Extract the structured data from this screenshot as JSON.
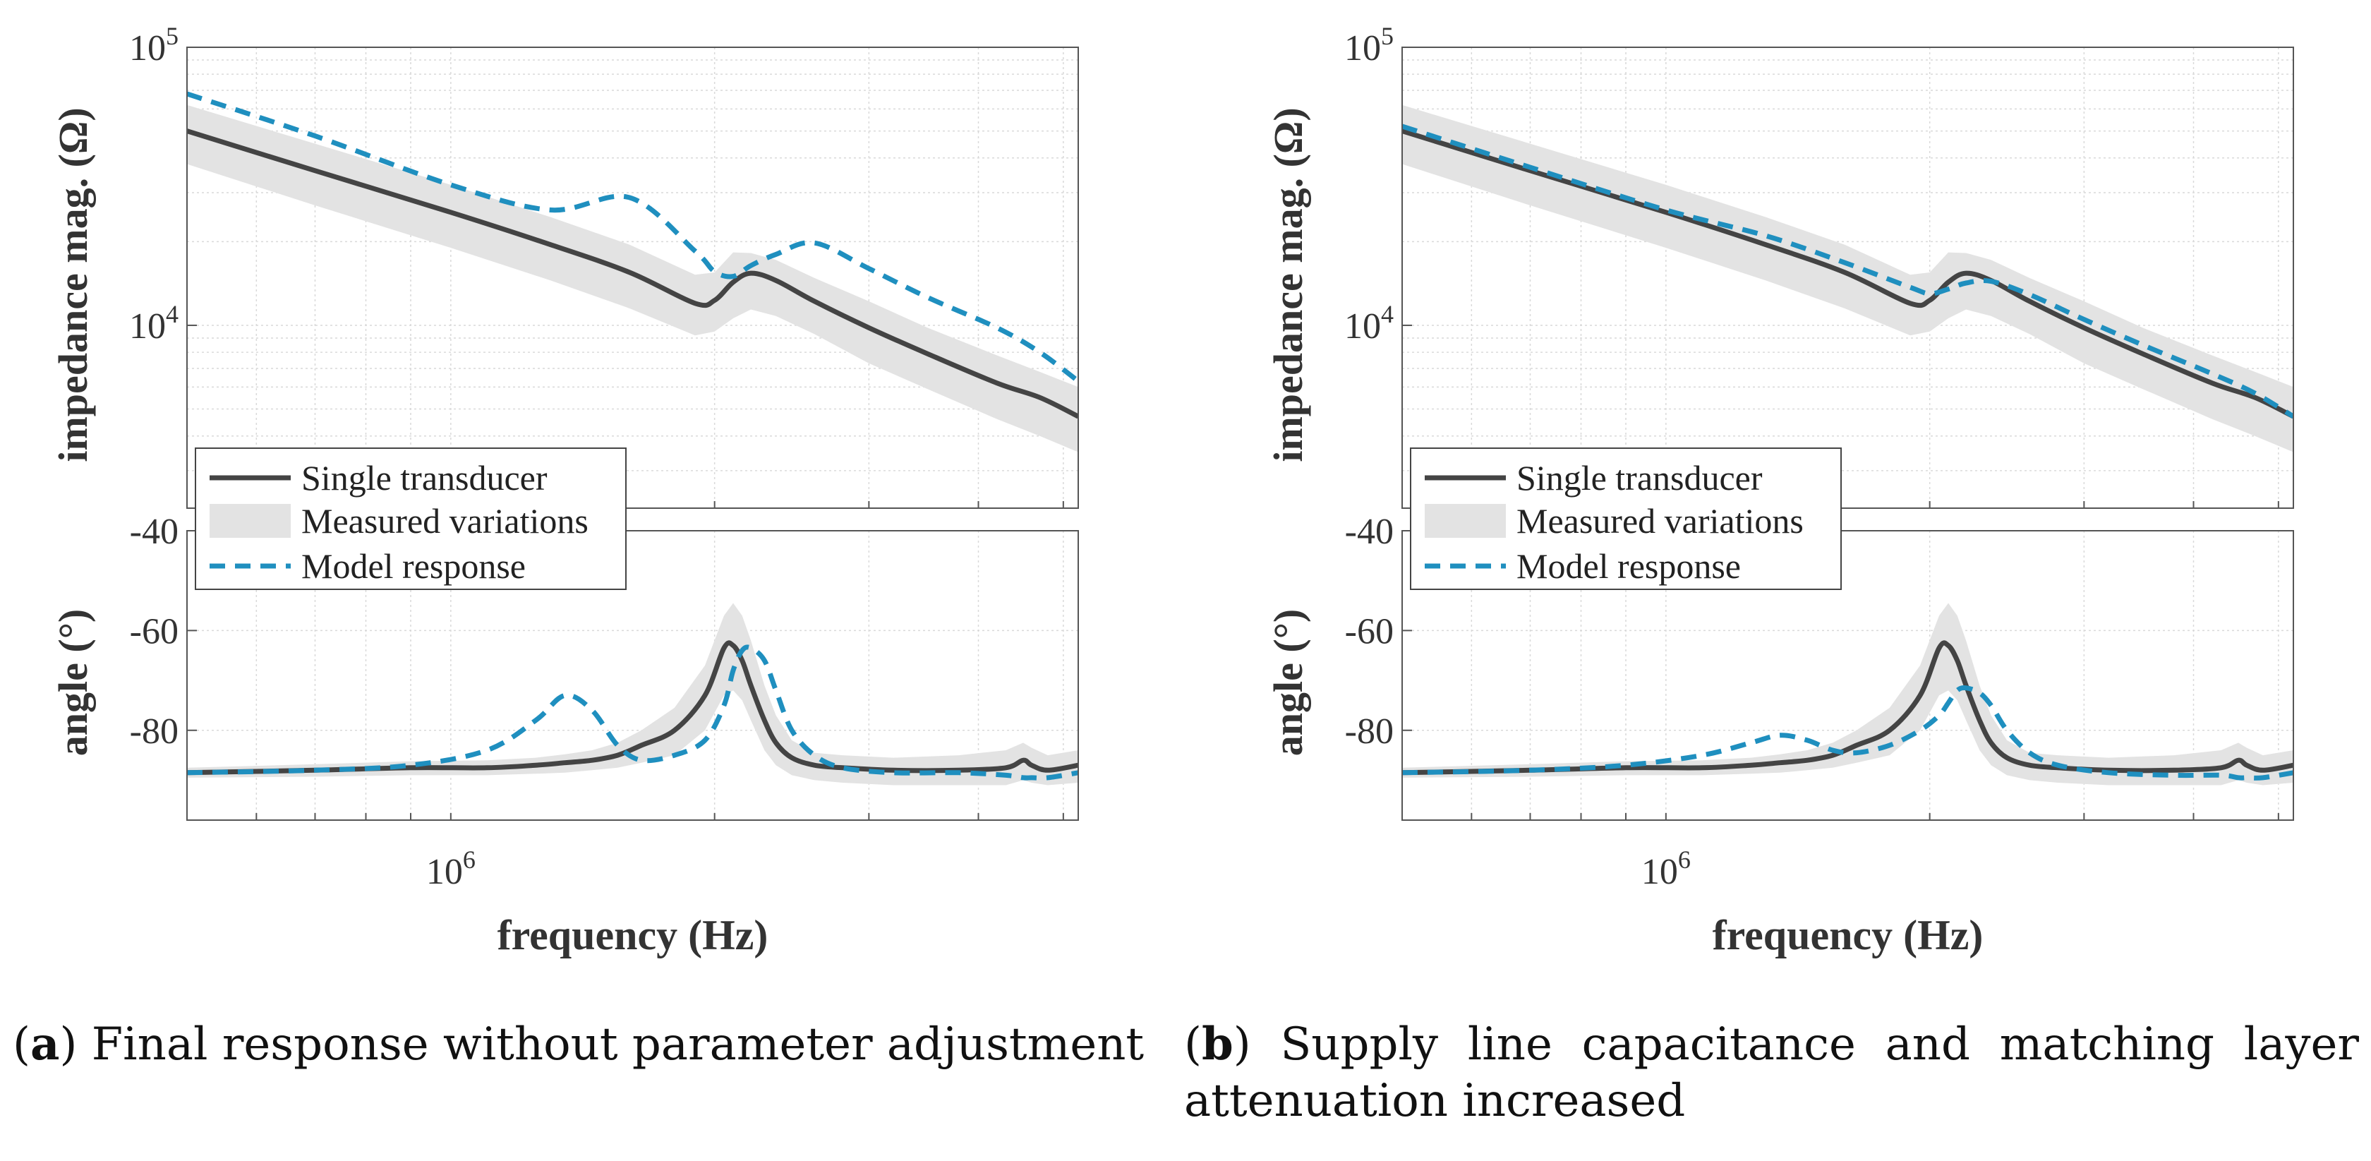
{
  "figure": {
    "panels": [
      {
        "caption": {
          "letter": "a",
          "open": "(",
          "close": ")",
          "text": "Final response without parameter adjustment"
        }
      },
      {
        "caption": {
          "letter": "b",
          "open": "(",
          "close": ")",
          "text": "Supply line capacitance and matching layer attenuation increased"
        }
      }
    ]
  },
  "chart_data": [
    {
      "panel": "a",
      "type": "line",
      "xscale": "log",
      "xlabel": "frequency (Hz)",
      "xlim": [
        500000,
        5200000
      ],
      "x_tick_labels": [
        {
          "value": 1000000,
          "base": "10",
          "exp": "6"
        }
      ],
      "legend": {
        "placement": "lower-left of magnitude plot",
        "entries": [
          "Single transducer",
          "Measured variations",
          "Model response"
        ]
      },
      "colors": {
        "single": "#444444",
        "band": "#e3e3e3",
        "model": "#1f8fbf"
      },
      "magnitude": {
        "ylabel": "impedance mag. (Ω)",
        "yscale": "log",
        "ylim": [
          2200,
          100000
        ],
        "y_tick_labels": [
          {
            "value": 10000,
            "base": "10",
            "exp": "4"
          },
          {
            "value": 100000,
            "base": "10",
            "exp": "5"
          }
        ],
        "x": [
          500000,
          700000,
          1000000,
          1300000,
          1600000,
          1900000,
          2000000,
          2100000,
          2200000,
          2350000,
          2600000,
          3000000,
          3500000,
          4200000,
          4700000,
          5200000
        ],
        "series": [
          {
            "name": "Single transducer",
            "values": [
              50000,
              36000,
              25500,
              19500,
              15500,
              12000,
              12300,
              14300,
              15400,
              14500,
              12200,
              9800,
              7900,
              6200,
              5500,
              4700
            ]
          },
          {
            "name": "Model response",
            "values": [
              68000,
              48000,
              32000,
              26000,
              28800,
              18500,
              15600,
              15000,
              16400,
              18000,
              19800,
              16000,
              12600,
              9800,
              8000,
              6300
            ]
          },
          {
            "name": "Measured variations",
            "lower": [
              38000,
              27000,
              19000,
              14500,
              11500,
              9200,
              9500,
              10600,
              11400,
              10800,
              9300,
              7300,
              5900,
              4600,
              4000,
              3500
            ],
            "upper": [
              62000,
              45000,
              32000,
              24500,
              19500,
              15200,
              15500,
              18300,
              18200,
              17200,
              14800,
              12200,
              9800,
              7800,
              6800,
              6000
            ]
          }
        ]
      },
      "angle": {
        "ylabel": "angle (°)",
        "ylim": [
          -98,
          -40
        ],
        "y_tick_labels": [
          "-40",
          "-60",
          "-80"
        ],
        "y_ticks": [
          -40,
          -60,
          -80
        ],
        "x": [
          500000,
          700000,
          900000,
          1100000,
          1250000,
          1350000,
          1450000,
          1550000,
          1650000,
          1800000,
          1950000,
          2050000,
          2100000,
          2150000,
          2200000,
          2280000,
          2350000,
          2450000,
          2600000,
          2800000,
          3200000,
          3800000,
          4300000,
          4500000,
          4600000,
          4800000,
          5200000
        ],
        "series": [
          {
            "name": "Single transducer",
            "values": [
              -88.5,
              -88,
              -87.5,
              -87.5,
              -87,
              -86.5,
              -86,
              -85,
              -83,
              -80,
              -73,
              -63.5,
              -63,
              -66,
              -71,
              -78,
              -82.5,
              -85.5,
              -87,
              -87.5,
              -88,
              -88,
              -87.5,
              -86,
              -87,
              -88,
              -87
            ]
          },
          {
            "name": "Model response",
            "values": [
              -88.5,
              -88,
              -87,
              -84,
              -78,
              -73,
              -76,
              -83,
              -86,
              -85,
              -82,
              -75,
              -68,
              -64,
              -63.5,
              -66,
              -72,
              -80,
              -85,
              -87.5,
              -88.5,
              -88.5,
              -89,
              -89.5,
              -89.5,
              -89.5,
              -88.5
            ]
          },
          {
            "name": "Measured variations",
            "lower": [
              -89.5,
              -89.3,
              -89,
              -89,
              -88.7,
              -88.5,
              -88,
              -87.5,
              -86.5,
              -85,
              -80,
              -73,
              -72,
              -74,
              -78,
              -84,
              -87,
              -89,
              -90,
              -90.5,
              -91,
              -91,
              -91,
              -90,
              -90.5,
              -91,
              -90.5
            ],
            "upper": [
              -87.5,
              -86.8,
              -86.2,
              -86,
              -85.5,
              -84.8,
              -84,
              -82.5,
              -80,
              -75.5,
              -67,
              -57,
              -54.5,
              -57,
              -62,
              -71,
              -77,
              -82,
              -84.5,
              -85,
              -85.5,
              -85,
              -84,
              -82.5,
              -83.5,
              -85,
              -84
            ]
          }
        ]
      }
    },
    {
      "panel": "b",
      "type": "line",
      "xscale": "log",
      "xlabel": "frequency (Hz)",
      "xlim": [
        500000,
        5200000
      ],
      "x_tick_labels": [
        {
          "value": 1000000,
          "base": "10",
          "exp": "6"
        }
      ],
      "legend": {
        "placement": "lower-left of magnitude plot",
        "entries": [
          "Single transducer",
          "Measured variations",
          "Model response"
        ]
      },
      "colors": {
        "single": "#444444",
        "band": "#e3e3e3",
        "model": "#1f8fbf"
      },
      "magnitude": {
        "ylabel": "impedance mag. (Ω)",
        "yscale": "log",
        "ylim": [
          2200,
          100000
        ],
        "y_tick_labels": [
          {
            "value": 10000,
            "base": "10",
            "exp": "4"
          },
          {
            "value": 100000,
            "base": "10",
            "exp": "5"
          }
        ],
        "x": [
          500000,
          700000,
          1000000,
          1300000,
          1600000,
          1900000,
          2000000,
          2100000,
          2200000,
          2350000,
          2600000,
          3000000,
          3500000,
          4200000,
          4700000,
          5200000
        ],
        "series": [
          {
            "name": "Single transducer",
            "values": [
              50000,
              36000,
              25500,
              19500,
              15500,
              12000,
              12300,
              14300,
              15400,
              14500,
              12200,
              9800,
              7900,
              6200,
              5500,
              4700
            ]
          },
          {
            "name": "Model response",
            "values": [
              52000,
              37000,
              26000,
              21000,
              16800,
              13700,
              13000,
              13500,
              14200,
              14400,
              12900,
              10500,
              8500,
              6700,
              5700,
              4700
            ]
          },
          {
            "name": "Measured variations",
            "lower": [
              38000,
              27000,
              19000,
              14500,
              11500,
              9200,
              9500,
              10600,
              11400,
              10800,
              9300,
              7300,
              5900,
              4600,
              4000,
              3500
            ],
            "upper": [
              62000,
              45000,
              32000,
              24500,
              19500,
              15200,
              15500,
              18300,
              18200,
              17200,
              14800,
              12200,
              9800,
              7800,
              6800,
              6000
            ]
          }
        ]
      },
      "angle": {
        "ylabel": "angle (°)",
        "ylim": [
          -98,
          -40
        ],
        "y_tick_labels": [
          "-40",
          "-60",
          "-80"
        ],
        "y_ticks": [
          -40,
          -60,
          -80
        ],
        "x": [
          500000,
          700000,
          900000,
          1100000,
          1250000,
          1350000,
          1450000,
          1550000,
          1650000,
          1800000,
          1950000,
          2050000,
          2100000,
          2150000,
          2200000,
          2280000,
          2350000,
          2450000,
          2600000,
          2800000,
          3200000,
          3800000,
          4300000,
          4500000,
          4600000,
          4800000,
          5200000
        ],
        "series": [
          {
            "name": "Single transducer",
            "values": [
              -88.5,
              -88,
              -87.5,
              -87.5,
              -87,
              -86.5,
              -86,
              -85,
              -83,
              -80,
              -73,
              -63.5,
              -63,
              -66,
              -71,
              -78,
              -82.5,
              -85.5,
              -87,
              -87.5,
              -88,
              -88,
              -87.5,
              -86,
              -87,
              -88,
              -87
            ]
          },
          {
            "name": "Model response",
            "values": [
              -88.5,
              -88,
              -87,
              -85,
              -82.5,
              -81,
              -82,
              -84,
              -84.5,
              -83,
              -80,
              -77,
              -74.5,
              -72,
              -71.5,
              -72.5,
              -75,
              -80,
              -84.5,
              -87,
              -88.5,
              -89,
              -89,
              -89.5,
              -89.5,
              -89.5,
              -88.5
            ]
          },
          {
            "name": "Measured variations",
            "lower": [
              -89.5,
              -89.3,
              -89,
              -89,
              -88.7,
              -88.5,
              -88,
              -87.5,
              -86.5,
              -85,
              -80,
              -73,
              -72,
              -74,
              -78,
              -84,
              -87,
              -89,
              -90,
              -90.5,
              -91,
              -91,
              -91,
              -90,
              -90.5,
              -91,
              -90.5
            ],
            "upper": [
              -87.5,
              -86.8,
              -86.2,
              -86,
              -85.5,
              -84.8,
              -84,
              -82.5,
              -80,
              -75.5,
              -67,
              -57,
              -54.5,
              -57,
              -62,
              -71,
              -77,
              -82,
              -84.5,
              -85,
              -85.5,
              -85,
              -84,
              -82.5,
              -83.5,
              -85,
              -84
            ]
          }
        ]
      }
    }
  ]
}
